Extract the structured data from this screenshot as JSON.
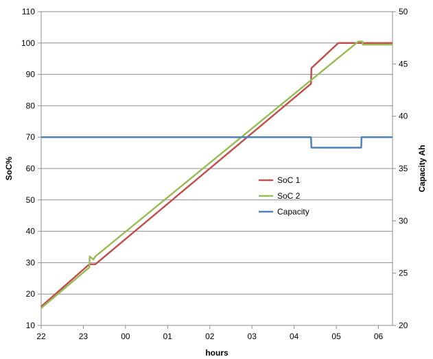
{
  "chart_data": {
    "type": "line",
    "title": "",
    "xlabel": "hours",
    "ylabel": "SoC%",
    "y2label": "Capacity Ah",
    "xlim": [
      0,
      8.75
    ],
    "ylim": [
      10,
      110
    ],
    "y2lim": [
      20,
      50
    ],
    "x_ticks": [
      {
        "pos": 0,
        "label": "22"
      },
      {
        "pos": 1.05,
        "label": "23"
      },
      {
        "pos": 2.1,
        "label": "00"
      },
      {
        "pos": 3.15,
        "label": "01"
      },
      {
        "pos": 4.2,
        "label": "02"
      },
      {
        "pos": 5.25,
        "label": "03"
      },
      {
        "pos": 6.3,
        "label": "04"
      },
      {
        "pos": 7.35,
        "label": "05"
      },
      {
        "pos": 8.4,
        "label": "06"
      }
    ],
    "y_ticks": [
      "10",
      "20",
      "30",
      "40",
      "50",
      "60",
      "70",
      "80",
      "90",
      "100",
      "110"
    ],
    "y2_ticks": [
      "20",
      "25",
      "30",
      "35",
      "40",
      "45",
      "50"
    ],
    "grid": "horizontal",
    "legend_position": "center-right",
    "series": [
      {
        "name": "SoC 1",
        "color": "#C0504D",
        "axis": "left",
        "x": [
          0,
          1.2,
          1.35,
          6.72,
          6.73,
          7.4,
          8.75
        ],
        "y": [
          16,
          29.5,
          29.5,
          87,
          92,
          100,
          100
        ]
      },
      {
        "name": "SoC 2",
        "color": "#9BBB59",
        "axis": "left",
        "x": [
          0,
          1.2,
          1.21,
          1.3,
          1.35,
          7.9,
          8.0,
          8.01,
          8.75
        ],
        "y": [
          15.5,
          28.5,
          32,
          31,
          32,
          100.5,
          100.5,
          99.5,
          99.5
        ]
      },
      {
        "name": "Capacity",
        "color": "#4F81BD",
        "axis": "right",
        "x": [
          0,
          6.72,
          6.73,
          7.97,
          7.98,
          8.75
        ],
        "y": [
          38,
          38,
          37,
          37,
          38,
          38
        ]
      }
    ]
  }
}
